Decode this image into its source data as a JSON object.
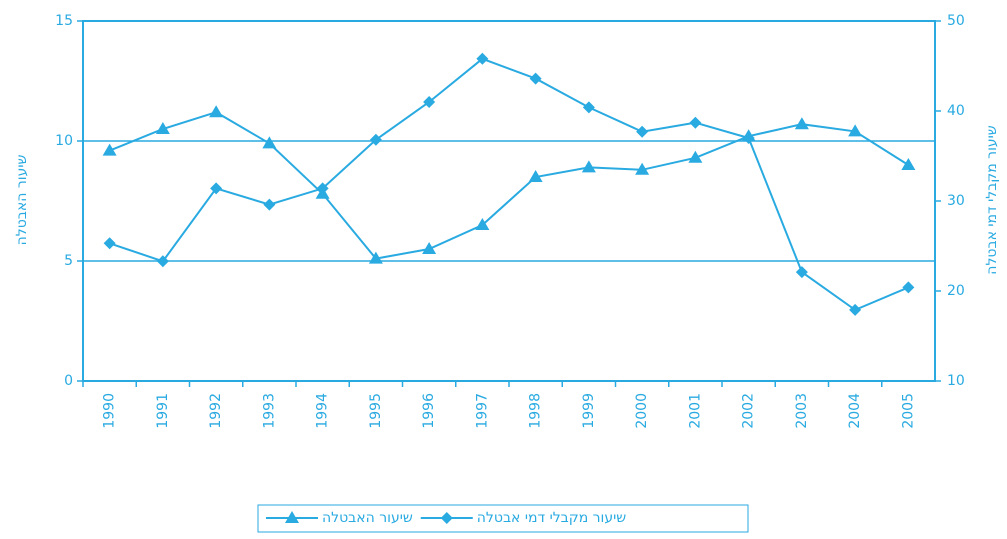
{
  "chart_data": {
    "type": "line",
    "categories": [
      "1990",
      "1991",
      "1992",
      "1993",
      "1994",
      "1995",
      "1996",
      "1997",
      "1998",
      "1999",
      "2000",
      "2001",
      "2002",
      "2003",
      "2004",
      "2005"
    ],
    "ylabel": "שיעור האבטלה",
    "y2label": "שיעור מקבלי דמי אבטלה",
    "ylim": [
      0,
      15
    ],
    "yticks": [
      0,
      5,
      10,
      15
    ],
    "y2lim": [
      10,
      50
    ],
    "y2ticks": [
      10,
      20,
      30,
      40,
      50
    ],
    "grid": true,
    "series": [
      {
        "name": "שיעור האבטלה",
        "color": "#29aae1",
        "marker": "triangle",
        "values": [
          9.6,
          10.5,
          11.2,
          9.9,
          7.8,
          5.1,
          5.5,
          6.5,
          8.5,
          8.9,
          8.8,
          9.3,
          10.2,
          10.7,
          10.4,
          9.0
        ]
      },
      {
        "name": "שיעור מקבלי דמי אבטלה",
        "color": "#29aae1",
        "marker": "diamond",
        "axis": "y2",
        "values": [
          25.3,
          23.3,
          31.4,
          29.6,
          31.4,
          36.8,
          41.0,
          45.8,
          43.6,
          40.4,
          37.7,
          38.7,
          37.0,
          22.1,
          17.9,
          20.4
        ]
      }
    ]
  }
}
